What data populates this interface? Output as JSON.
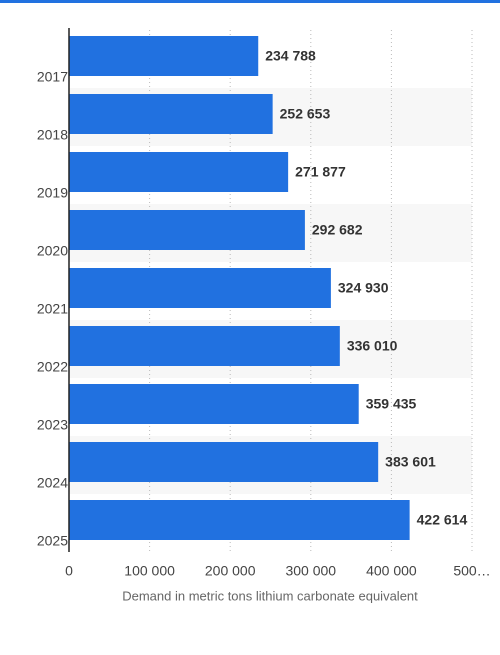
{
  "chart_data": {
    "type": "bar",
    "orientation": "horizontal",
    "categories": [
      "2017",
      "2018",
      "2019",
      "2020",
      "2021",
      "2022",
      "2023",
      "2024",
      "2025"
    ],
    "values": [
      234788,
      252653,
      271877,
      292682,
      324930,
      336010,
      359435,
      383601,
      422614
    ],
    "value_labels": [
      "234 788",
      "252 653",
      "271 877",
      "292 682",
      "324 930",
      "336 010",
      "359 435",
      "383 601",
      "422 614"
    ],
    "color": "#2171e0",
    "xlim": [
      0,
      500000
    ],
    "xticks": [
      0,
      {
        "value": 100000,
        "label": "100 000"
      },
      {
        "value": 200000,
        "label": "200 000"
      },
      {
        "value": 300000,
        "label": "300 000"
      },
      {
        "value": 400000,
        "label": "400 000"
      },
      {
        "value": 500000,
        "label": "500…"
      }
    ],
    "x_label": "Demand in metric tons lithium carbonate equivalent",
    "grid": true
  }
}
